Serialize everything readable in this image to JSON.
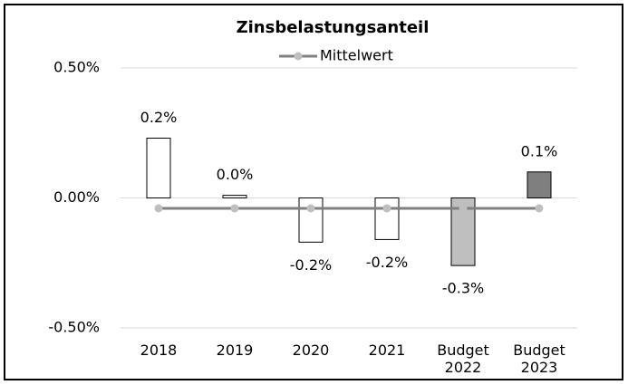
{
  "chart_data": {
    "type": "bar",
    "title": "Zinsbelastungsanteil",
    "categories": [
      "2018",
      "2019",
      "2020",
      "2021",
      "Budget 2022",
      "Budget 2023"
    ],
    "series": [
      {
        "name": "Zinsbelastungsanteil",
        "type": "bar",
        "colors": [
          "#ffffff",
          "#ffffff",
          "#ffffff",
          "#ffffff",
          "#bfbfbf",
          "#7f7f7f"
        ],
        "values": [
          0.23,
          0.01,
          -0.17,
          -0.16,
          -0.26,
          0.1
        ],
        "value_labels": [
          "0.2%",
          "0.0%",
          "-0.2%",
          "-0.2%",
          "-0.3%",
          "0.1%"
        ]
      },
      {
        "name": "Mittelwert",
        "type": "line",
        "color": "#808080",
        "marker_color": "#bfbfbf",
        "values": [
          -0.04,
          -0.04,
          -0.04,
          -0.04,
          -0.04,
          -0.04
        ]
      }
    ],
    "ylim": [
      -0.5,
      0.5
    ],
    "yticks": [
      {
        "value": -0.5,
        "label": "-0.50%"
      },
      {
        "value": 0,
        "label": "0.00%"
      },
      {
        "value": 0.5,
        "label": "0.50%"
      }
    ],
    "grid": true,
    "legend": "top"
  }
}
